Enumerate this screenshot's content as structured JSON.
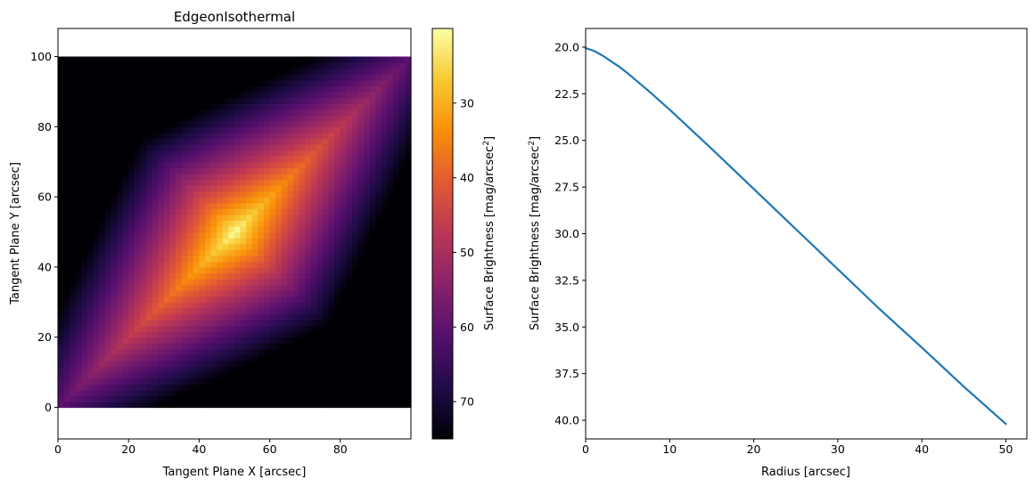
{
  "chart_data": [
    {
      "type": "heatmap",
      "title": "EdgeonIsothermal",
      "xlabel": "Tangent Plane X [arcsec]",
      "ylabel": "Tangent Plane Y [arcsec]",
      "xlim": [
        0,
        100
      ],
      "ylim": [
        -9,
        108
      ],
      "image_extent": [
        0,
        100,
        0,
        100
      ],
      "xticks": [
        0,
        20,
        40,
        60,
        80
      ],
      "yticks": [
        0,
        20,
        40,
        60,
        80,
        100
      ],
      "center": [
        50,
        50
      ],
      "colormap": "inferno",
      "colorbar": {
        "label_main": "Surface Brightness [mag/arcsec",
        "label_sup": "2",
        "label_end": "]",
        "range": [
          20,
          75
        ],
        "ticks": [
          30,
          40,
          50,
          60,
          70
        ],
        "inverted": true
      },
      "value_min": 20,
      "value_max": 75
    },
    {
      "type": "line",
      "xlabel": "Radius [arcsec]",
      "ylabel_main": "Surface Brightness [mag/arcsec",
      "ylabel_sup": "2",
      "ylabel_end": "]",
      "xlim": [
        0,
        52.5
      ],
      "ylim": [
        41.0,
        19.0
      ],
      "xticks": [
        0,
        10,
        20,
        30,
        40,
        50
      ],
      "yticks": [
        20.0,
        22.5,
        25.0,
        27.5,
        30.0,
        32.5,
        35.0,
        37.5,
        40.0
      ],
      "color": "#1f77b4",
      "series": [
        {
          "x": [
            0,
            1,
            2,
            3,
            4,
            5,
            7.5,
            10,
            12.5,
            15,
            20,
            25,
            30,
            35,
            40,
            45,
            50
          ],
          "y": [
            20.05,
            20.2,
            20.45,
            20.75,
            21.05,
            21.4,
            22.35,
            23.35,
            24.4,
            25.45,
            27.6,
            29.75,
            31.9,
            34.05,
            36.1,
            38.2,
            40.2
          ]
        }
      ]
    }
  ]
}
